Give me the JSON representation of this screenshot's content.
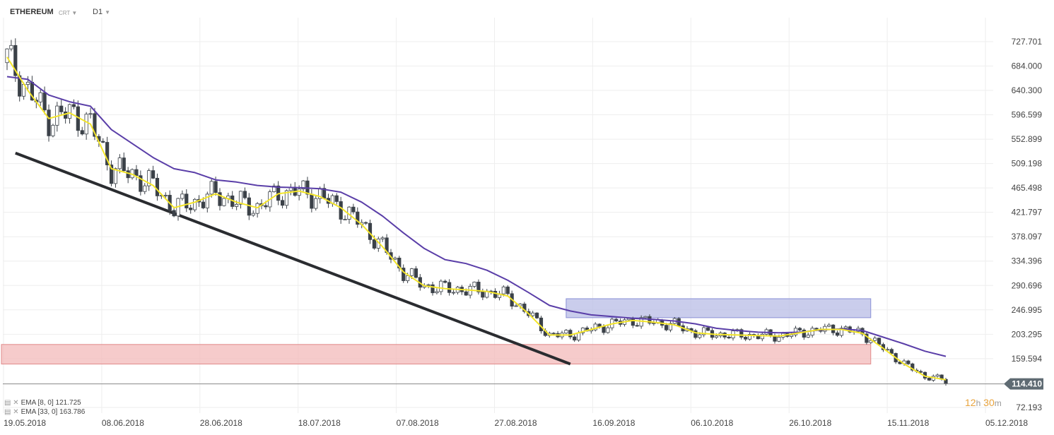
{
  "header": {
    "symbol": "ETHEREUM",
    "subtitle": "CRT",
    "timeframe": "D1",
    "caret": "▼"
  },
  "indicators": [
    {
      "label": "EMA",
      "params": "[8, 0]",
      "value": "121.725",
      "color": "#f3e52a"
    },
    {
      "label": "EMA",
      "params": "[33, 0]",
      "value": "163.786",
      "color": "#5a3ea8"
    }
  ],
  "current_price": "114.410",
  "countdown": {
    "h": "12",
    "hu": "h",
    "m": "30",
    "mu": "m"
  },
  "colors": {
    "bull": "#ffffff",
    "bear": "#3b4148",
    "ema_fast": "#f3e52a",
    "ema_slow": "#5a3ea8",
    "trendline": "#2a2c30",
    "support_zone": "#f3b9b9",
    "resistance_zone": "#b8bce6"
  },
  "chart_data": {
    "type": "candlestick",
    "y_ticks": [
      "727.701",
      "684.000",
      "640.300",
      "596.599",
      "552.899",
      "509.198",
      "465.498",
      "421.797",
      "378.097",
      "334.396",
      "290.696",
      "246.995",
      "203.295",
      "159.594",
      "72.193"
    ],
    "x_ticks": [
      "19.05.2018",
      "08.06.2018",
      "28.06.2018",
      "18.07.2018",
      "07.08.2018",
      "27.08.2018",
      "16.09.2018",
      "06.10.2018",
      "26.10.2018",
      "15.11.2018",
      "05.12.2018"
    ],
    "ylim": [
      62,
      758
    ],
    "current_price": 114.41,
    "ema_fast": [
      [
        0,
        700
      ],
      [
        5,
        640
      ],
      [
        10,
        590
      ],
      [
        15,
        600
      ],
      [
        20,
        580
      ],
      [
        25,
        500
      ],
      [
        30,
        490
      ],
      [
        35,
        470
      ],
      [
        40,
        430
      ],
      [
        45,
        440
      ],
      [
        50,
        455
      ],
      [
        55,
        440
      ],
      [
        60,
        430
      ],
      [
        65,
        455
      ],
      [
        70,
        460
      ],
      [
        75,
        450
      ],
      [
        80,
        430
      ],
      [
        85,
        400
      ],
      [
        90,
        360
      ],
      [
        95,
        315
      ],
      [
        100,
        290
      ],
      [
        105,
        285
      ],
      [
        110,
        283
      ],
      [
        115,
        280
      ],
      [
        120,
        272
      ],
      [
        125,
        240
      ],
      [
        130,
        202
      ],
      [
        135,
        202
      ],
      [
        140,
        212
      ],
      [
        145,
        222
      ],
      [
        150,
        228
      ],
      [
        155,
        225
      ],
      [
        160,
        220
      ],
      [
        165,
        206
      ],
      [
        170,
        203
      ],
      [
        175,
        202
      ],
      [
        180,
        201
      ],
      [
        185,
        200
      ],
      [
        190,
        206
      ],
      [
        195,
        212
      ],
      [
        200,
        212
      ],
      [
        205,
        205
      ],
      [
        210,
        178
      ],
      [
        215,
        150
      ],
      [
        220,
        128
      ],
      [
        225,
        121.7
      ]
    ],
    "ema_slow": [
      [
        0,
        665
      ],
      [
        5,
        660
      ],
      [
        10,
        632
      ],
      [
        15,
        620
      ],
      [
        20,
        612
      ],
      [
        25,
        570
      ],
      [
        30,
        545
      ],
      [
        35,
        520
      ],
      [
        40,
        500
      ],
      [
        45,
        493
      ],
      [
        50,
        480
      ],
      [
        55,
        476
      ],
      [
        60,
        470
      ],
      [
        65,
        467
      ],
      [
        70,
        466
      ],
      [
        75,
        464
      ],
      [
        80,
        458
      ],
      [
        85,
        440
      ],
      [
        90,
        415
      ],
      [
        95,
        385
      ],
      [
        100,
        357
      ],
      [
        105,
        337
      ],
      [
        110,
        330
      ],
      [
        115,
        318
      ],
      [
        120,
        300
      ],
      [
        125,
        278
      ],
      [
        130,
        255
      ],
      [
        135,
        245
      ],
      [
        140,
        238
      ],
      [
        145,
        235
      ],
      [
        150,
        232
      ],
      [
        155,
        230
      ],
      [
        160,
        227
      ],
      [
        165,
        222
      ],
      [
        170,
        214
      ],
      [
        175,
        210
      ],
      [
        180,
        207
      ],
      [
        185,
        206
      ],
      [
        190,
        207
      ],
      [
        195,
        211
      ],
      [
        200,
        213
      ],
      [
        205,
        210
      ],
      [
        210,
        198
      ],
      [
        215,
        186
      ],
      [
        220,
        173
      ],
      [
        225,
        163.8
      ]
    ],
    "trendline": [
      [
        2,
        528
      ],
      [
        135,
        150
      ]
    ],
    "zones": [
      {
        "name": "support",
        "ylim": [
          150,
          185
        ],
        "xlim": [
          0,
          207
        ]
      },
      {
        "name": "resistance",
        "ylim": [
          233,
          267
        ],
        "xlim": [
          134,
          207
        ]
      }
    ]
  }
}
